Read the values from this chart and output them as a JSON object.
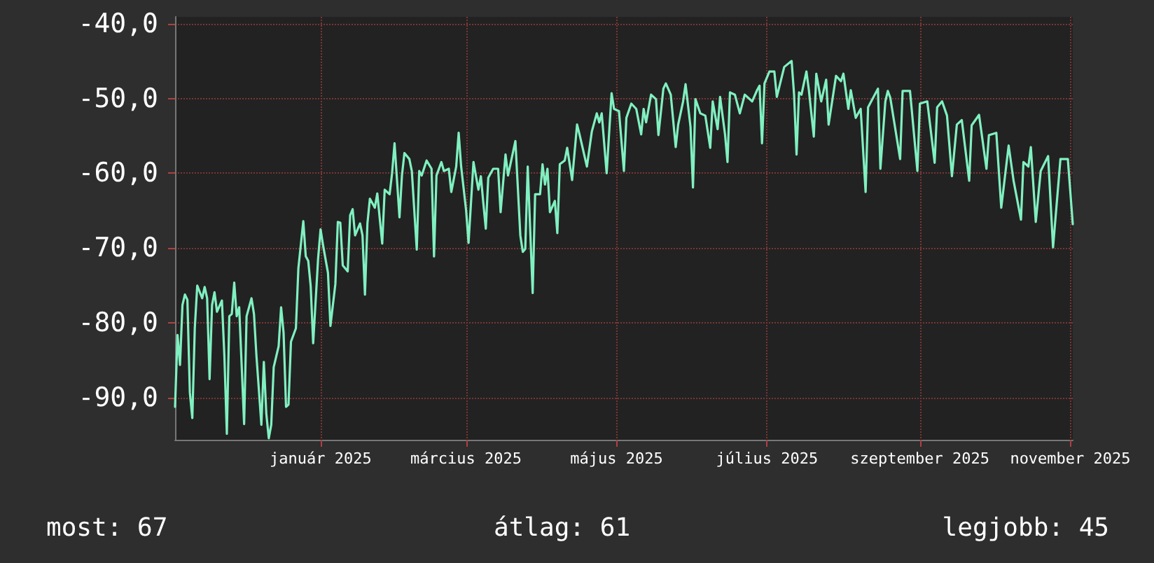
{
  "chart_data": {
    "type": "line",
    "grid": true,
    "marker": "none",
    "line_style": "solid",
    "ylim": [
      -95.6,
      -39.1
    ],
    "yticks": [
      {
        "value": -40,
        "label": "-40,0"
      },
      {
        "value": -50,
        "label": "-50,0"
      },
      {
        "value": -60,
        "label": "-60,0"
      },
      {
        "value": -70,
        "label": "-70,0"
      },
      {
        "value": -80,
        "label": "-80,0"
      },
      {
        "value": -90,
        "label": "-90,0"
      }
    ],
    "xlim": [
      "2024-11-18",
      "2025-11-17"
    ],
    "xticks": [
      {
        "value": "2025-01-16",
        "label": "január 2025"
      },
      {
        "value": "2025-03-16",
        "label": "március 2025"
      },
      {
        "value": "2025-05-16",
        "label": "május 2025"
      },
      {
        "value": "2025-07-16",
        "label": "július 2025"
      },
      {
        "value": "2025-09-16",
        "label": "szeptember 2025"
      },
      {
        "value": "2025-11-16",
        "label": "november 2025"
      }
    ],
    "annotations": [
      "most: 67",
      "átlag: 61",
      "legjobb: 45"
    ],
    "x": [
      "2024-11-18",
      "2024-11-19",
      "2024-11-20",
      "2024-11-21",
      "2024-11-22",
      "2024-11-23",
      "2024-11-24",
      "2024-11-25",
      "2024-11-26",
      "2024-11-27",
      "2024-11-29",
      "2024-11-30",
      "2024-12-01",
      "2024-12-02",
      "2024-12-03",
      "2024-12-04",
      "2024-12-05",
      "2024-12-07",
      "2024-12-08",
      "2024-12-09",
      "2024-12-10",
      "2024-12-11",
      "2024-12-12",
      "2024-12-13",
      "2024-12-14",
      "2024-12-15",
      "2024-12-16",
      "2024-12-17",
      "2024-12-19",
      "2024-12-20",
      "2024-12-21",
      "2024-12-23",
      "2024-12-24",
      "2024-12-25",
      "2024-12-26",
      "2024-12-27",
      "2024-12-28",
      "2024-12-30",
      "2024-12-31",
      "2025-01-01",
      "2025-01-02",
      "2025-01-03",
      "2025-01-04",
      "2025-01-06",
      "2025-01-07",
      "2025-01-09",
      "2025-01-10",
      "2025-01-11",
      "2025-01-12",
      "2025-01-13",
      "2025-01-15",
      "2025-01-16",
      "2025-01-17",
      "2025-01-19",
      "2025-01-20",
      "2025-01-22",
      "2025-01-23",
      "2025-01-24",
      "2025-01-25",
      "2025-01-27",
      "2025-01-28",
      "2025-01-29",
      "2025-01-30",
      "2025-02-01",
      "2025-02-02",
      "2025-02-03",
      "2025-02-04",
      "2025-02-05",
      "2025-02-07",
      "2025-02-08",
      "2025-02-10",
      "2025-02-11",
      "2025-02-13",
      "2025-02-14",
      "2025-02-15",
      "2025-02-17",
      "2025-02-18",
      "2025-02-19",
      "2025-02-21",
      "2025-02-22",
      "2025-02-24",
      "2025-02-25",
      "2025-02-26",
      "2025-02-28",
      "2025-03-02",
      "2025-03-03",
      "2025-03-04",
      "2025-03-06",
      "2025-03-07",
      "2025-03-09",
      "2025-03-10",
      "2025-03-12",
      "2025-03-13",
      "2025-03-14",
      "2025-03-16",
      "2025-03-17",
      "2025-03-19",
      "2025-03-21",
      "2025-03-22",
      "2025-03-23",
      "2025-03-24",
      "2025-03-25",
      "2025-03-27",
      "2025-03-29",
      "2025-03-30",
      "2025-04-01",
      "2025-04-02",
      "2025-04-05",
      "2025-04-07",
      "2025-04-08",
      "2025-04-09",
      "2025-04-10",
      "2025-04-12",
      "2025-04-13",
      "2025-04-15",
      "2025-04-16",
      "2025-04-17",
      "2025-04-18",
      "2025-04-19",
      "2025-04-21",
      "2025-04-22",
      "2025-04-23",
      "2025-04-25",
      "2025-04-26",
      "2025-04-28",
      "2025-04-30",
      "2025-05-01",
      "2025-05-04",
      "2025-05-06",
      "2025-05-08",
      "2025-05-09",
      "2025-05-10",
      "2025-05-12",
      "2025-05-14",
      "2025-05-15",
      "2025-05-17",
      "2025-05-19",
      "2025-05-20",
      "2025-05-22",
      "2025-05-24",
      "2025-05-26",
      "2025-05-27",
      "2025-05-28",
      "2025-05-30",
      "2025-06-01",
      "2025-06-02",
      "2025-06-04",
      "2025-06-05",
      "2025-06-07",
      "2025-06-09",
      "2025-06-10",
      "2025-06-12",
      "2025-06-13",
      "2025-06-15",
      "2025-06-16",
      "2025-06-17",
      "2025-06-19",
      "2025-06-21",
      "2025-06-23",
      "2025-06-24",
      "2025-06-26",
      "2025-06-27",
      "2025-06-29",
      "2025-06-30",
      "2025-07-01",
      "2025-07-03",
      "2025-07-05",
      "2025-07-07",
      "2025-07-10",
      "2025-07-12",
      "2025-07-13",
      "2025-07-14",
      "2025-07-15",
      "2025-07-17",
      "2025-07-19",
      "2025-07-20",
      "2025-07-23",
      "2025-07-26",
      "2025-07-27",
      "2025-07-28",
      "2025-07-29",
      "2025-07-30",
      "2025-08-01",
      "2025-08-02",
      "2025-08-04",
      "2025-08-05",
      "2025-08-07",
      "2025-08-09",
      "2025-08-10",
      "2025-08-13",
      "2025-08-15",
      "2025-08-16",
      "2025-08-18",
      "2025-08-19",
      "2025-08-21",
      "2025-08-23",
      "2025-08-25",
      "2025-08-26",
      "2025-08-30",
      "2025-08-31",
      "2025-09-02",
      "2025-09-03",
      "2025-09-04",
      "2025-09-08",
      "2025-09-09",
      "2025-09-12",
      "2025-09-15",
      "2025-09-16",
      "2025-09-19",
      "2025-09-22",
      "2025-09-23",
      "2025-09-25",
      "2025-09-27",
      "2025-09-29",
      "2025-10-01",
      "2025-10-03",
      "2025-10-06",
      "2025-10-07",
      "2025-10-10",
      "2025-10-13",
      "2025-10-14",
      "2025-10-17",
      "2025-10-19",
      "2025-10-22",
      "2025-10-24",
      "2025-10-27",
      "2025-10-28",
      "2025-10-30",
      "2025-10-31",
      "2025-11-02",
      "2025-11-04",
      "2025-11-07",
      "2025-11-09",
      "2025-11-12",
      "2025-11-15",
      "2025-11-17"
    ],
    "series": [
      {
        "color": "#80f0c0",
        "values": [
          -91.2,
          -81.6,
          -85.6,
          -77.6,
          -76.2,
          -76.9,
          -89.3,
          -92.7,
          -80.7,
          -75,
          -76.7,
          -75.2,
          -76.7,
          -87.5,
          -77.6,
          -75.9,
          -78.5,
          -77,
          -84.4,
          -94.8,
          -79.1,
          -78.8,
          -74.6,
          -79.1,
          -77.9,
          -85.6,
          -93.5,
          -79.1,
          -76.7,
          -78.8,
          -84.4,
          -93.6,
          -85.2,
          -92.1,
          -95.4,
          -93.6,
          -85.9,
          -83.1,
          -77.9,
          -81.3,
          -91.2,
          -90.9,
          -82.5,
          -80.7,
          -72.7,
          -66.4,
          -71.1,
          -71.7,
          -75.1,
          -82.7,
          -71.4,
          -67.5,
          -69.6,
          -73.3,
          -80.4,
          -74.8,
          -66.5,
          -66.6,
          -72.3,
          -73.1,
          -65.6,
          -64.8,
          -68.3,
          -66.7,
          -68.3,
          -76.2,
          -66.7,
          -63.4,
          -64.6,
          -62.7,
          -69.4,
          -62.2,
          -62.8,
          -60,
          -56,
          -65.9,
          -60.3,
          -57.3,
          -58.1,
          -59.7,
          -70.2,
          -59.7,
          -60.3,
          -58.3,
          -59.4,
          -71.1,
          -60.3,
          -58.5,
          -59.7,
          -59.4,
          -62.5,
          -59.1,
          -54.6,
          -59.1,
          -64.9,
          -69.3,
          -58.5,
          -62.2,
          -60.4,
          -64,
          -67.4,
          -60.6,
          -59.4,
          -59.4,
          -65.2,
          -57.5,
          -60.3,
          -55.7,
          -68.3,
          -70.5,
          -70.1,
          -59.1,
          -76,
          -62.8,
          -62.8,
          -58.8,
          -61.5,
          -59.4,
          -65.2,
          -63.7,
          -68,
          -58.8,
          -58.3,
          -56.6,
          -60.9,
          -53.5,
          -54.8,
          -59.1,
          -54.4,
          -52,
          -53.2,
          -52,
          -60,
          -49.3,
          -51.4,
          -51.7,
          -59.7,
          -52.6,
          -50.7,
          -51.4,
          -54.8,
          -51.4,
          -53.2,
          -49.5,
          -50.1,
          -54.9,
          -48.7,
          -48,
          -49.5,
          -56.5,
          -53.5,
          -50.4,
          -48.1,
          -53.8,
          -61.9,
          -50.1,
          -52,
          -52.3,
          -56.6,
          -50.4,
          -54.1,
          -49.8,
          -54.8,
          -58.5,
          -49.2,
          -49.5,
          -52,
          -49.5,
          -50.4,
          -48.9,
          -48.3,
          -56,
          -48,
          -46.4,
          -46.4,
          -49.8,
          -45.8,
          -45,
          -49.5,
          -57.5,
          -49.2,
          -49.5,
          -46.4,
          -48.9,
          -55.1,
          -46.7,
          -50.4,
          -47.5,
          -53.5,
          -47,
          -47.7,
          -46.7,
          -51.4,
          -48.9,
          -52.6,
          -51.4,
          -62.5,
          -51.2,
          -48.7,
          -59.4,
          -50.4,
          -49,
          -49.9,
          -58.1,
          -49,
          -49,
          -59.7,
          -50.7,
          -50.4,
          -58.6,
          -51.2,
          -50.4,
          -52.3,
          -60.4,
          -53.5,
          -52.9,
          -61,
          -53.6,
          -52.2,
          -59.4,
          -54.9,
          -54.6,
          -64.6,
          -56.3,
          -61,
          -66.2,
          -58.5,
          -59.1,
          -56.5,
          -66.5,
          -59.7,
          -57.7,
          -69.9,
          -58.1,
          -58.1,
          -66.8
        ]
      }
    ]
  }
}
